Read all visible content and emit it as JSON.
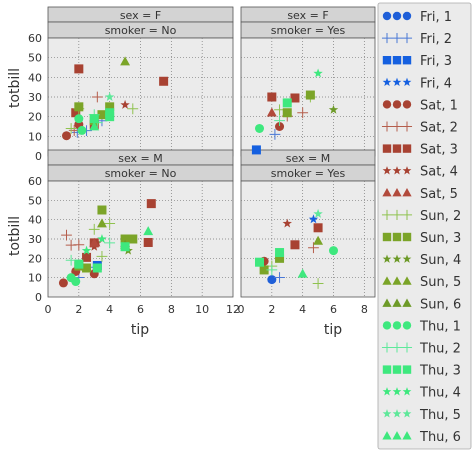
{
  "chart_data": {
    "type": "scatter",
    "xlabel": "tip",
    "ylabel": "totbill",
    "xlim": [
      0,
      12
    ],
    "ylim": [
      0,
      60
    ],
    "x_ticks": [
      0,
      2,
      4,
      6,
      8,
      10,
      12
    ],
    "y_ticks": [
      0,
      10,
      20,
      30,
      40,
      50,
      60
    ],
    "grid": true,
    "legend_position": "right",
    "facets": [
      {
        "row": "sex = F",
        "col": "smoker = No"
      },
      {
        "row": "sex = F",
        "col": "smoker = Yes"
      },
      {
        "row": "sex = M",
        "col": "smoker = No"
      },
      {
        "row": "sex = M",
        "col": "smoker = Yes"
      }
    ],
    "series": [
      {
        "name": "Fri, 1",
        "marker": "circle",
        "color": "#1f5fd8",
        "points": [
          [
            2.0,
            9.0
          ]
        ]
      },
      {
        "name": "Fri, 2",
        "marker": "plus",
        "color": "#4a78d6",
        "points": [
          [
            3.0,
            15.4
          ],
          [
            3.5,
            17.9
          ],
          [
            2.5,
            10.1
          ],
          [
            1.9,
            12.0
          ],
          [
            3.0,
            13.4
          ],
          [
            2.2,
            11.0
          ],
          [
            2.0,
            10.1
          ],
          [
            2.5,
            12.9
          ]
        ]
      },
      {
        "name": "Fri, 3",
        "marker": "square",
        "color": "#1560e0",
        "points": [
          [
            3.2,
            16.3
          ],
          [
            1.0,
            3.1
          ]
        ]
      },
      {
        "name": "Fri, 4",
        "marker": "star",
        "color": "#1560e0",
        "points": [
          [
            4.7,
            40.2
          ]
        ]
      },
      {
        "name": "Sat, 1",
        "marker": "circle",
        "color": "#a84232",
        "points": [
          [
            1.0,
            7.3
          ],
          [
            1.2,
            10.3
          ],
          [
            1.5,
            18.5
          ],
          [
            2.0,
            16.0
          ],
          [
            3.0,
            12.0
          ],
          [
            2.5,
            15.0
          ],
          [
            1.8,
            13.2
          ]
        ]
      },
      {
        "name": "Sat, 2",
        "marker": "plus",
        "color": "#b55e4c",
        "points": [
          [
            1.5,
            26.8
          ],
          [
            3.0,
            20.3
          ],
          [
            2.0,
            27.0
          ],
          [
            3.2,
            30.0
          ],
          [
            4.7,
            25.5
          ],
          [
            1.7,
            13.0
          ],
          [
            1.2,
            32.0
          ],
          [
            4.0,
            22.0
          ]
        ]
      },
      {
        "name": "Sat, 3",
        "marker": "square",
        "color": "#a84232",
        "points": [
          [
            5.0,
            35.8
          ],
          [
            2.0,
            44.3
          ],
          [
            6.5,
            28.2
          ],
          [
            2.0,
            30.0
          ],
          [
            6.7,
            48.3
          ],
          [
            7.5,
            38.0
          ],
          [
            9.0,
            48.2
          ],
          [
            3.0,
            16.0
          ],
          [
            3.0,
            28.0
          ],
          [
            3.5,
            29.5
          ],
          [
            2.5,
            20.5
          ],
          [
            1.8,
            22.0
          ],
          [
            3.5,
            27.0
          ]
        ]
      },
      {
        "name": "Sat, 4",
        "marker": "star",
        "color": "#a84232",
        "points": [
          [
            3.0,
            26.0
          ],
          [
            5.0,
            26.0
          ],
          [
            3.0,
            38.0
          ],
          [
            2.0,
            25.0
          ],
          [
            3.2,
            28.0
          ]
        ]
      },
      {
        "name": "Sat, 5",
        "marker": "triangle",
        "color": "#b24a3c",
        "points": [
          [
            3.0,
            28.0
          ],
          [
            2.0,
            22.0
          ],
          [
            5.0,
            28.0
          ]
        ]
      },
      {
        "name": "Sun, 2",
        "marker": "plus",
        "color": "#8fc24f",
        "points": [
          [
            2.0,
            16.0
          ],
          [
            1.5,
            14.0
          ],
          [
            3.5,
            21.0
          ],
          [
            2.5,
            23.5
          ],
          [
            3.0,
            35.0
          ],
          [
            2.0,
            24.0
          ],
          [
            5.0,
            7.0
          ],
          [
            5.5,
            24.0
          ],
          [
            4.0,
            38.0
          ],
          [
            4.5,
            30.0
          ]
        ]
      },
      {
        "name": "Sun, 3",
        "marker": "square",
        "color": "#7ba428",
        "points": [
          [
            2.0,
            16.0
          ],
          [
            3.0,
            18.0
          ],
          [
            2.5,
            20.0
          ],
          [
            4.0,
            25.0
          ],
          [
            5.0,
            30.0
          ],
          [
            3.0,
            22.0
          ],
          [
            3.5,
            45.0
          ],
          [
            3.5,
            21.0
          ],
          [
            1.5,
            14.0
          ],
          [
            2.0,
            25.0
          ],
          [
            2.5,
            15.0
          ],
          [
            4.5,
            31.0
          ],
          [
            5.5,
            30.0
          ]
        ]
      },
      {
        "name": "Sun, 4",
        "marker": "star",
        "color": "#6d9a28",
        "points": [
          [
            5.2,
            24.0
          ],
          [
            6.0,
            23.5
          ]
        ]
      },
      {
        "name": "Sun, 5",
        "marker": "triangle",
        "color": "#7ba428",
        "points": [
          [
            5.0,
            29.0
          ],
          [
            5.0,
            48.0
          ],
          [
            3.5,
            38.0
          ]
        ]
      },
      {
        "name": "Sun, 6",
        "marker": "triangle",
        "color": "#6d9a28",
        "points": [
          [
            5.0,
            27.0
          ]
        ]
      },
      {
        "name": "Thu, 1",
        "marker": "circle",
        "color": "#3ee87e",
        "points": [
          [
            1.5,
            10.0
          ],
          [
            1.2,
            14.0
          ],
          [
            1.8,
            8.0
          ],
          [
            2.0,
            19.0
          ],
          [
            6.0,
            24.0
          ],
          [
            2.2,
            13.0
          ]
        ]
      },
      {
        "name": "Thu, 2",
        "marker": "plus",
        "color": "#5ee89a",
        "points": [
          [
            2.0,
            14.0
          ],
          [
            3.0,
            21.0
          ],
          [
            4.0,
            28.0
          ],
          [
            2.5,
            18.0
          ],
          [
            1.5,
            19.0
          ],
          [
            3.2,
            17.0
          ]
        ]
      },
      {
        "name": "Thu, 3",
        "marker": "square",
        "color": "#3ee87e",
        "points": [
          [
            2.0,
            17.0
          ],
          [
            3.0,
            19.0
          ],
          [
            1.2,
            18.0
          ],
          [
            4.0,
            22.0
          ],
          [
            5.0,
            26.0
          ],
          [
            3.0,
            27.0
          ],
          [
            3.2,
            15.0
          ],
          [
            4.0,
            20.0
          ],
          [
            2.5,
            23.0
          ]
        ]
      },
      {
        "name": "Thu, 4",
        "marker": "star",
        "color": "#3ee87e",
        "points": [
          [
            2.5,
            24.0
          ],
          [
            5.0,
            42.0
          ],
          [
            3.5,
            30.0
          ]
        ]
      },
      {
        "name": "Thu, 5",
        "marker": "star",
        "color": "#5ee89a",
        "points": [
          [
            5.0,
            43.0
          ],
          [
            4.0,
            30.0
          ]
        ]
      },
      {
        "name": "Thu, 6",
        "marker": "triangle",
        "color": "#3ee87e",
        "points": [
          [
            6.5,
            34.0
          ],
          [
            3.0,
            15.0
          ],
          [
            4.0,
            12.0
          ]
        ]
      }
    ]
  }
}
